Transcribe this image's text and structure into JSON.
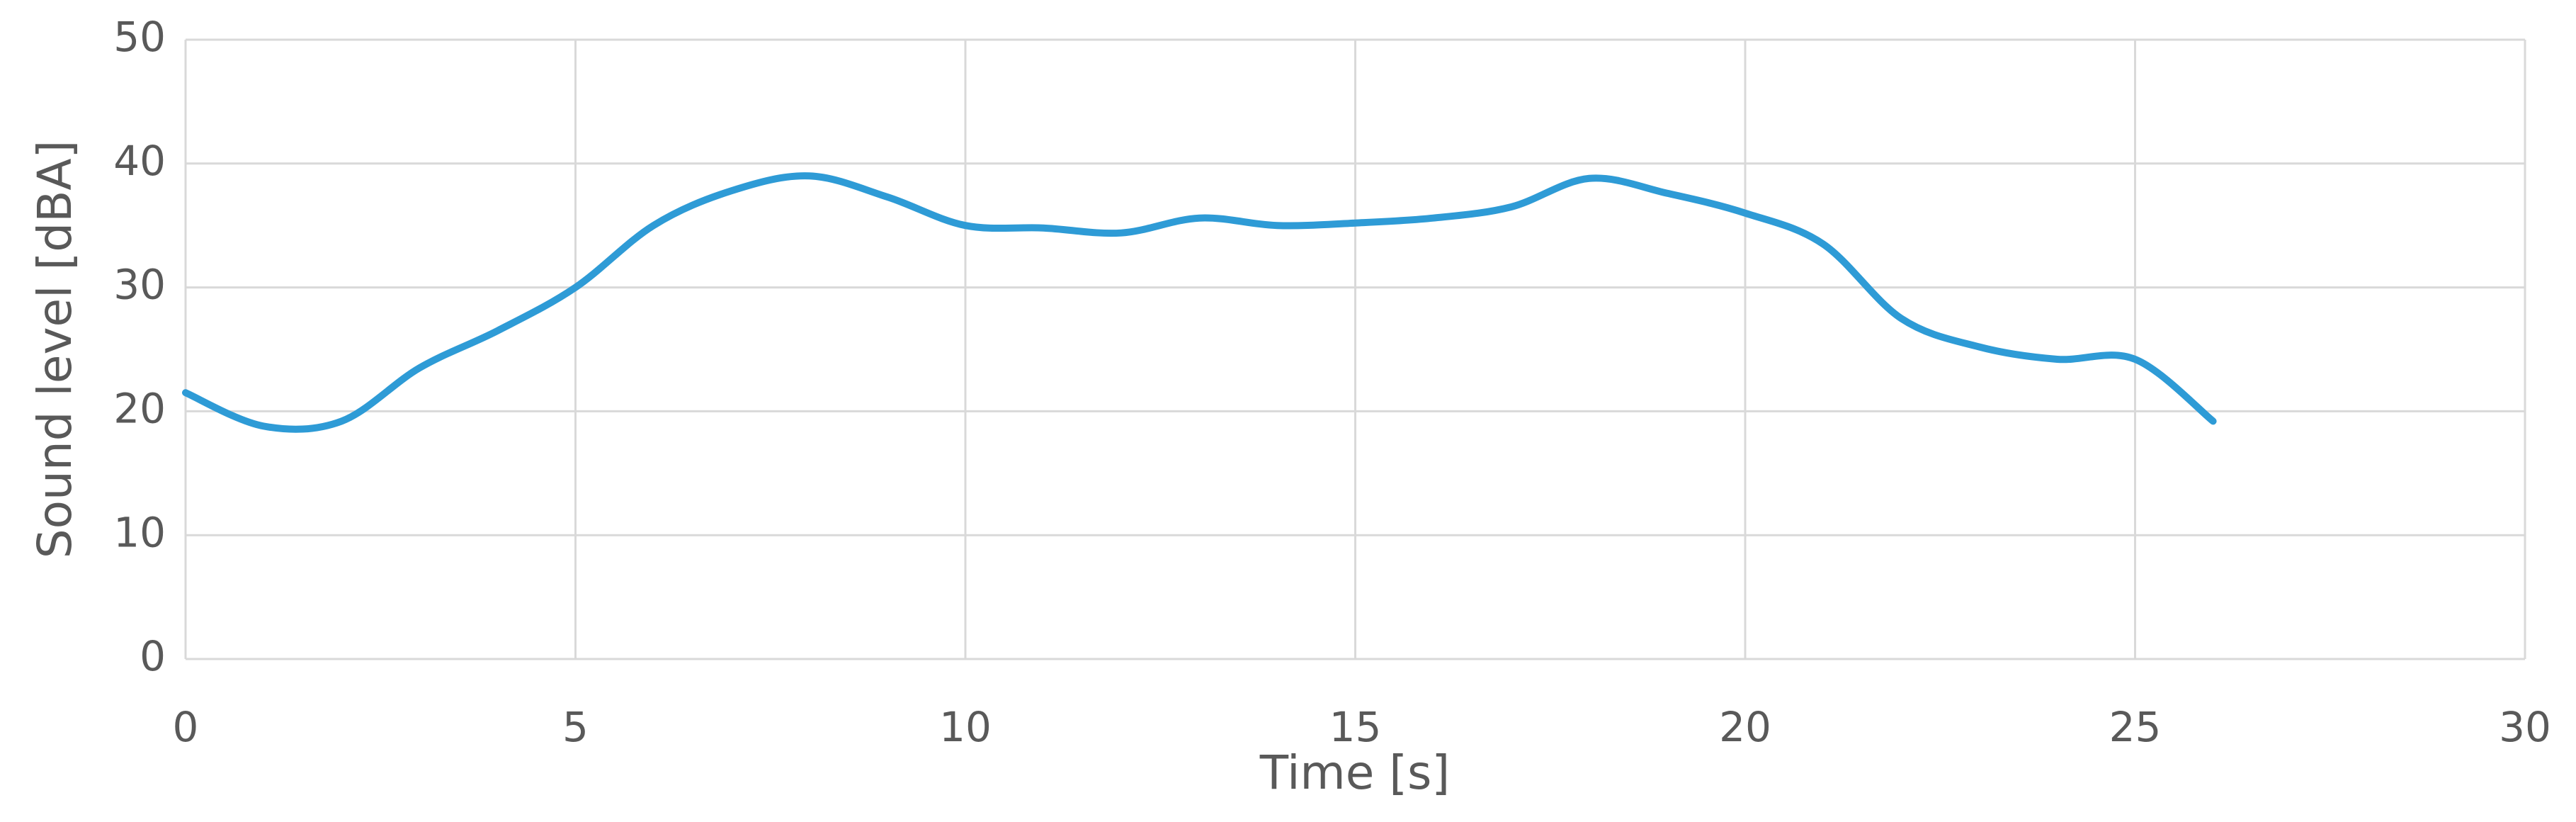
{
  "chart_data": {
    "type": "line",
    "x_label": "Time [s]",
    "y_label": "Sound level  [dBA]",
    "x": [
      0,
      1,
      2,
      3,
      4,
      5,
      6,
      7,
      8,
      9,
      10,
      11,
      12,
      13,
      14,
      15,
      16,
      17,
      18,
      19,
      20,
      21,
      22,
      23,
      24,
      25,
      26
    ],
    "series": [
      {
        "name": "Sound level",
        "color": "#2e9bd6",
        "values": [
          21.5,
          18.8,
          19.2,
          23.5,
          26.5,
          30,
          35,
          37.8,
          39,
          37.3,
          35,
          34.8,
          34.4,
          35.6,
          35,
          35.2,
          35.6,
          36.5,
          38.8,
          37.6,
          36,
          33.5,
          27.5,
          25.2,
          24.2,
          24.2,
          19.2
        ]
      }
    ],
    "xlim": [
      0,
      30
    ],
    "xticks": [
      0,
      5,
      10,
      15,
      20,
      25,
      30
    ],
    "ylim": [
      0,
      50
    ],
    "yticks": [
      0,
      10,
      20,
      30,
      40,
      50
    ],
    "grid": true,
    "smooth": true
  }
}
